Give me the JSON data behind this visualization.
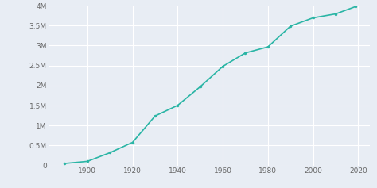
{
  "years": [
    1890,
    1900,
    1910,
    1920,
    1930,
    1940,
    1950,
    1960,
    1970,
    1980,
    1990,
    2000,
    2010,
    2019
  ],
  "population": [
    50395,
    102479,
    319198,
    576673,
    1238048,
    1504277,
    1970358,
    2479015,
    2816061,
    2966850,
    3485398,
    3694820,
    3792621,
    3979576
  ],
  "line_color": "#2ab5a5",
  "marker_color": "#2ab5a5",
  "background_color": "#e8edf4",
  "grid_color": "#ffffff",
  "tick_color": "#666666",
  "ylim": [
    0,
    4000000
  ],
  "xlim": [
    1883,
    2025
  ],
  "yticks": [
    0,
    500000,
    1000000,
    1500000,
    2000000,
    2500000,
    3000000,
    3500000,
    4000000
  ],
  "ytick_labels": [
    "0",
    "0.5M",
    "1M",
    "1.5M",
    "2M",
    "2.5M",
    "3M",
    "3.5M",
    "4M"
  ],
  "xticks": [
    1900,
    1920,
    1940,
    1960,
    1980,
    2000,
    2020
  ],
  "tick_fontsize": 6.5
}
